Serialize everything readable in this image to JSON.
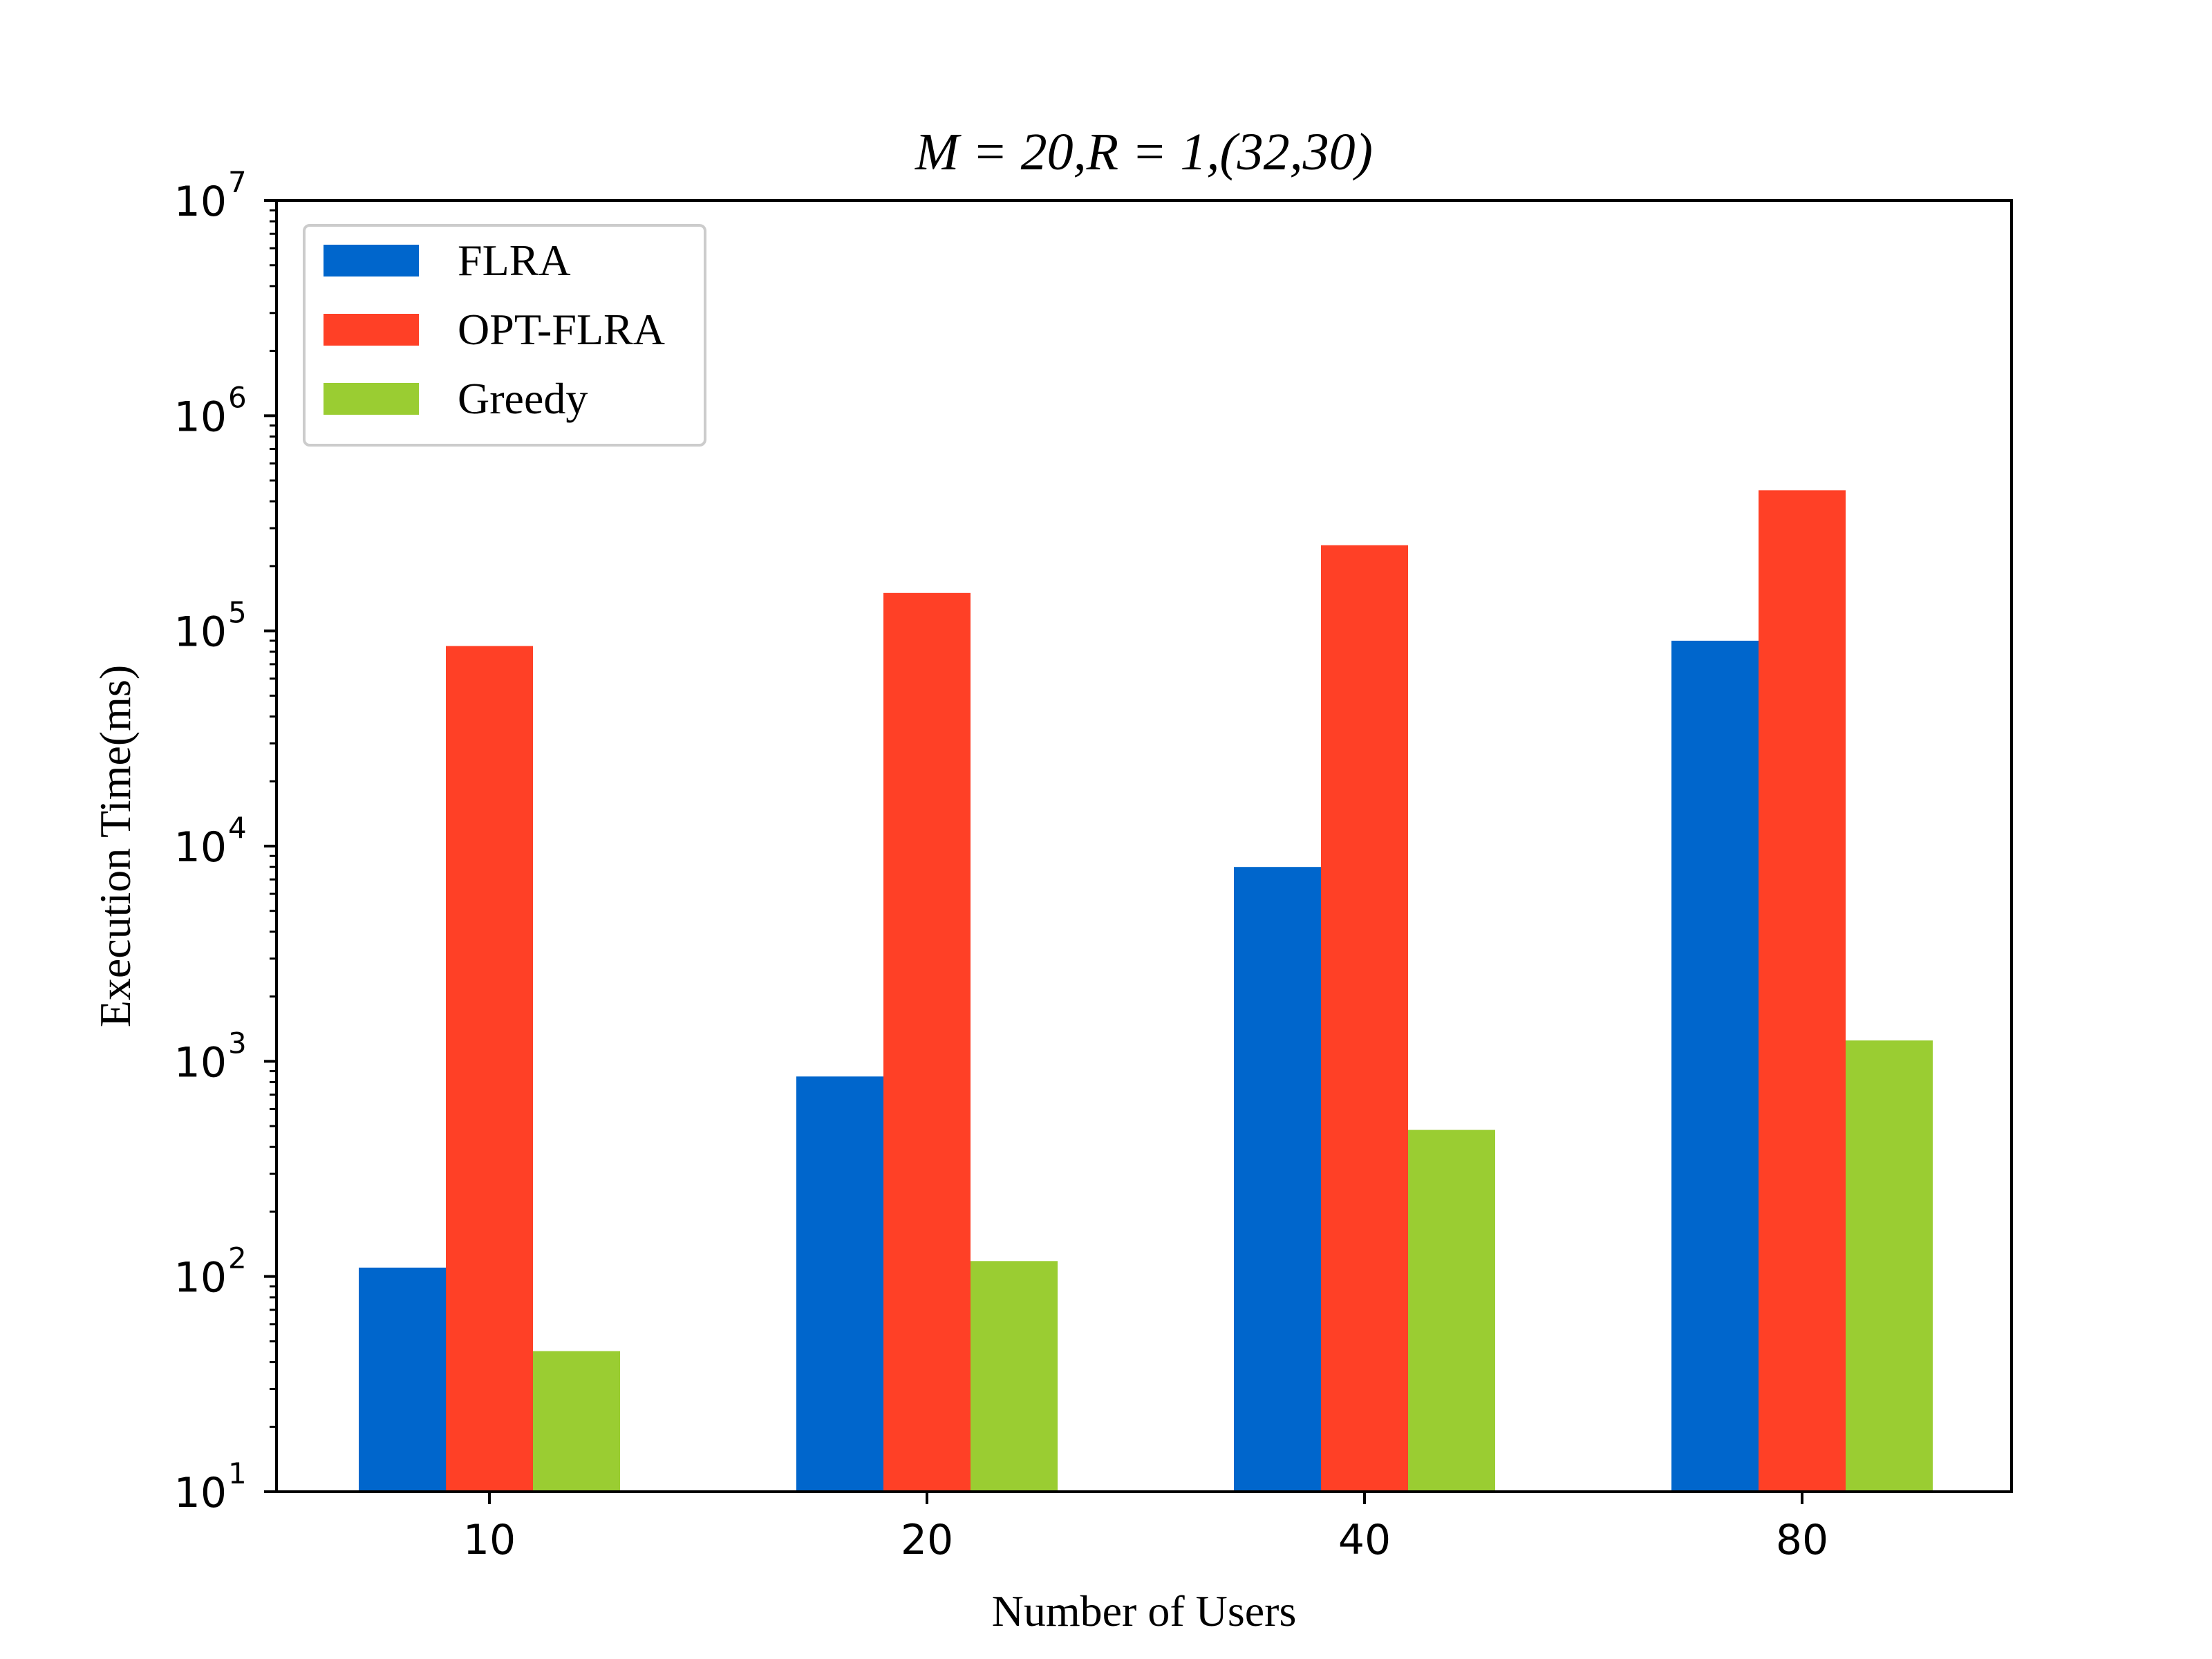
{
  "chart_data": {
    "type": "bar",
    "title": "M = 20,R = 1,(32,30)",
    "xlabel": "Number of Users",
    "ylabel": "Execution Time(ms)",
    "categories": [
      "10",
      "20",
      "40",
      "80"
    ],
    "y_scale": "log",
    "ylim": [
      10,
      10000000
    ],
    "y_ticks": [
      {
        "base": "10",
        "exp": "1"
      },
      {
        "base": "10",
        "exp": "2"
      },
      {
        "base": "10",
        "exp": "3"
      },
      {
        "base": "10",
        "exp": "4"
      },
      {
        "base": "10",
        "exp": "5"
      },
      {
        "base": "10",
        "exp": "6"
      },
      {
        "base": "10",
        "exp": "7"
      }
    ],
    "legend_position": "top-left",
    "grid": false,
    "series": [
      {
        "name": "FLRA",
        "color": "#0066CC",
        "values": [
          110,
          850,
          8000,
          90000
        ]
      },
      {
        "name": "OPT-FLRA",
        "color": "#FF4026",
        "values": [
          85000,
          150000,
          250000,
          450000
        ]
      },
      {
        "name": "Greedy",
        "color": "#9ACD32",
        "values": [
          45,
          118,
          480,
          1250
        ]
      }
    ]
  }
}
